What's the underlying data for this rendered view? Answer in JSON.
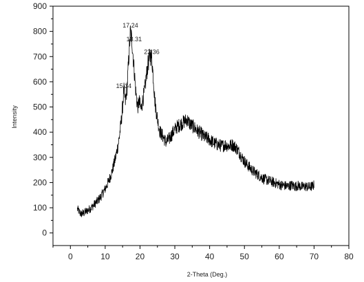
{
  "chart_data": {
    "type": "line",
    "title": "",
    "xlabel": "2-Theta (Deg.)",
    "ylabel": "Intensity",
    "xlim": [
      -5,
      80
    ],
    "ylim": [
      -50,
      900
    ],
    "x_ticks": [
      0,
      10,
      20,
      30,
      40,
      50,
      60,
      70,
      80
    ],
    "y_ticks": [
      0,
      100,
      200,
      300,
      400,
      500,
      600,
      700,
      800,
      900
    ],
    "grid": false,
    "legend": "none",
    "line_color": "#000000",
    "series": [
      {
        "x": [
          2,
          3,
          4,
          5,
          6,
          7,
          8,
          9,
          10,
          11,
          12,
          13,
          13.5,
          14,
          14.5,
          15,
          15.34,
          15.8,
          16.3,
          16.8,
          17.24,
          17.7,
          18.31,
          18.8,
          19.3,
          19.8,
          20.3,
          20.8,
          21.3,
          21.8,
          22.3,
          22.8,
          23.36,
          23.8,
          24.3,
          24.8,
          25.3,
          25.8,
          26.5,
          27.5,
          28.5,
          29.5,
          30.5,
          31.5,
          32.5,
          33.5,
          34.5,
          35.5,
          36.5,
          37.5,
          38.5,
          39.5,
          40.5,
          41.5,
          42.5,
          43.5,
          44.5,
          45.5,
          46.5,
          47.5,
          48.5,
          49.5,
          50.5,
          51.5,
          52.5,
          53.5,
          54.5,
          55.5,
          56.5,
          57.5,
          58.5,
          59.5,
          60.5,
          61.5,
          62.5,
          63.5,
          64.5,
          65.5,
          66.5,
          67.5,
          68.5,
          69.5,
          70
        ],
        "y": [
          95,
          75,
          80,
          90,
          100,
          115,
          130,
          150,
          175,
          205,
          245,
          300,
          335,
          375,
          430,
          500,
          570,
          520,
          580,
          700,
          800,
          760,
          650,
          560,
          500,
          520,
          490,
          530,
          560,
          620,
          670,
          700,
          700,
          620,
          520,
          470,
          430,
          400,
          385,
          360,
          375,
          400,
          420,
          430,
          440,
          450,
          430,
          420,
          405,
          395,
          380,
          375,
          365,
          355,
          350,
          345,
          350,
          345,
          350,
          340,
          320,
          295,
          275,
          260,
          245,
          235,
          225,
          215,
          210,
          205,
          200,
          195,
          190,
          188,
          185,
          190,
          185,
          188,
          183,
          185,
          182,
          185,
          190
        ]
      }
    ],
    "annotations": [
      {
        "x": 15.34,
        "y": 570,
        "text": "15.34"
      },
      {
        "x": 17.24,
        "y": 810,
        "text": "17.24"
      },
      {
        "x": 18.31,
        "y": 755,
        "text": "18.31"
      },
      {
        "x": 23.36,
        "y": 705,
        "text": "23.36"
      }
    ]
  }
}
